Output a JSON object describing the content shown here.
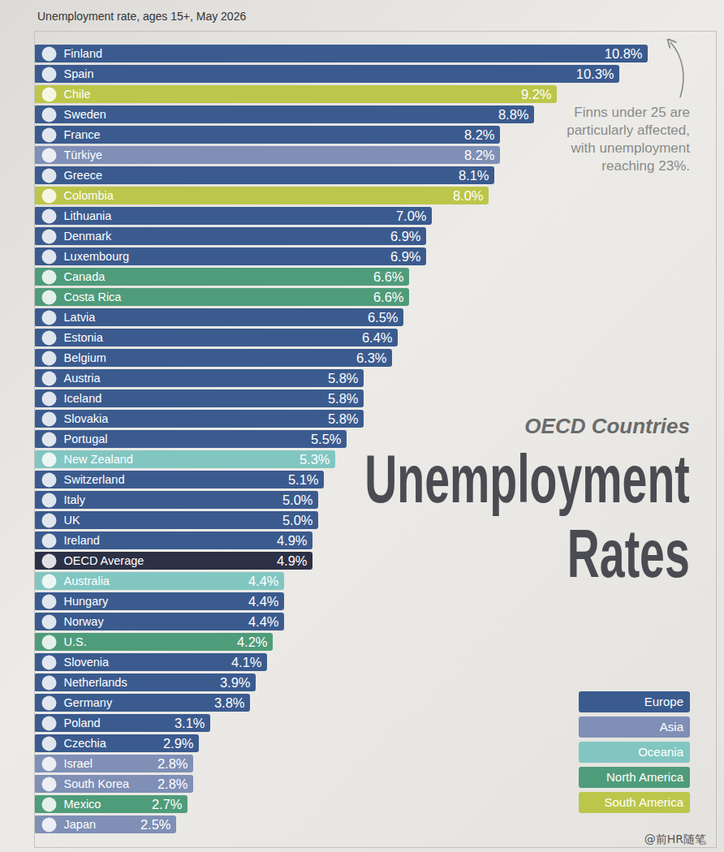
{
  "chart_data": {
    "type": "bar",
    "orientation": "horizontal",
    "caption": "Unemployment rate, ages 15+, May 2026",
    "subtitle": "OECD Countries",
    "title": "Unemployment Rates",
    "annotation": "Finns under 25 are particularly affected, with unemployment reaching 23%.",
    "watermark": "@前HR随笔",
    "categories": [
      "Finland",
      "Spain",
      "Chile",
      "Sweden",
      "France",
      "Türkiye",
      "Greece",
      "Colombia",
      "Lithuania",
      "Denmark",
      "Luxembourg",
      "Canada",
      "Costa Rica",
      "Latvia",
      "Estonia",
      "Belgium",
      "Austria",
      "Iceland",
      "Slovakia",
      "Portugal",
      "New Zealand",
      "Switzerland",
      "Italy",
      "UK",
      "Ireland",
      "OECD Average",
      "Australia",
      "Hungary",
      "Norway",
      "U.S.",
      "Slovenia",
      "Netherlands",
      "Germany",
      "Poland",
      "Czechia",
      "Israel",
      "South Korea",
      "Mexico",
      "Japan"
    ],
    "values": [
      10.8,
      10.3,
      9.2,
      8.8,
      8.2,
      8.2,
      8.1,
      8.0,
      7.0,
      6.9,
      6.9,
      6.6,
      6.6,
      6.5,
      6.4,
      6.3,
      5.8,
      5.8,
      5.8,
      5.5,
      5.3,
      5.1,
      5.0,
      5.0,
      4.9,
      4.9,
      4.4,
      4.4,
      4.4,
      4.2,
      4.1,
      3.9,
      3.8,
      3.1,
      2.9,
      2.8,
      2.8,
      2.7,
      2.5
    ],
    "value_labels": [
      "10.8%",
      "10.3%",
      "9.2%",
      "8.8%",
      "8.2%",
      "8.2%",
      "8.1%",
      "8.0%",
      "7.0%",
      "6.9%",
      "6.9%",
      "6.6%",
      "6.6%",
      "6.5%",
      "6.4%",
      "6.3%",
      "5.8%",
      "5.8%",
      "5.8%",
      "5.5%",
      "5.3%",
      "5.1%",
      "5.0%",
      "5.0%",
      "4.9%",
      "4.9%",
      "4.4%",
      "4.4%",
      "4.4%",
      "4.2%",
      "4.1%",
      "3.9%",
      "3.8%",
      "3.1%",
      "2.9%",
      "2.8%",
      "2.8%",
      "2.7%",
      "2.5%"
    ],
    "colors": [
      "#3b5b8f",
      "#3b5b8f",
      "#bcc64a",
      "#3b5b8f",
      "#3b5b8f",
      "#7f8fb6",
      "#3b5b8f",
      "#bcc64a",
      "#3b5b8f",
      "#3b5b8f",
      "#3b5b8f",
      "#4f9c7a",
      "#4f9c7a",
      "#3b5b8f",
      "#3b5b8f",
      "#3b5b8f",
      "#3b5b8f",
      "#3b5b8f",
      "#3b5b8f",
      "#3b5b8f",
      "#82c6c1",
      "#3b5b8f",
      "#3b5b8f",
      "#3b5b8f",
      "#3b5b8f",
      "#2c3045",
      "#82c6c1",
      "#3b5b8f",
      "#3b5b8f",
      "#4f9c7a",
      "#3b5b8f",
      "#3b5b8f",
      "#3b5b8f",
      "#3b5b8f",
      "#3b5b8f",
      "#7f8fb6",
      "#7f8fb6",
      "#4f9c7a",
      "#7f8fb6"
    ],
    "regions": [
      {
        "name": "Europe",
        "color": "#3b5b8f"
      },
      {
        "name": "Asia",
        "color": "#7f8fb6"
      },
      {
        "name": "Oceania",
        "color": "#82c6c1"
      },
      {
        "name": "North America",
        "color": "#4f9c7a"
      },
      {
        "name": "South America",
        "color": "#bcc64a"
      }
    ],
    "legend": "bottom-right",
    "xlim": [
      0,
      12
    ],
    "xticks": [],
    "tick_labels": false,
    "grid": false,
    "data_labels": true
  }
}
